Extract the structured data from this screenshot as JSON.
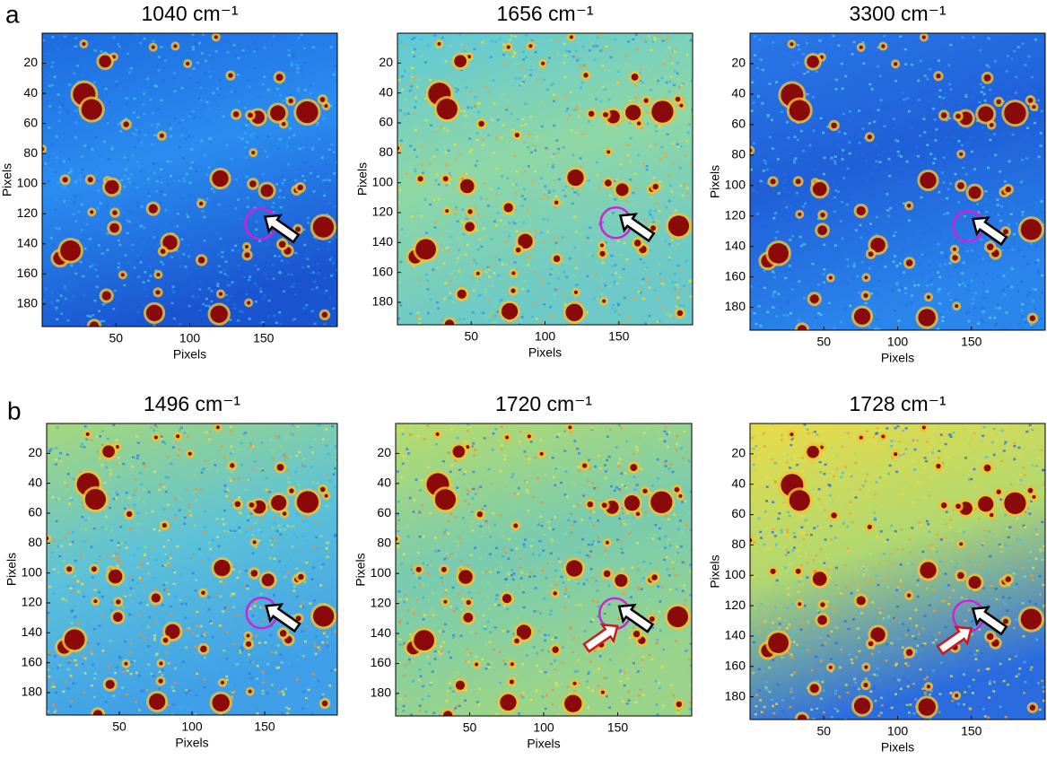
{
  "panels": [
    {
      "label": "a"
    },
    {
      "label": "b"
    }
  ],
  "chart_data": [
    {
      "type": "heatmap",
      "title": "1040 cm⁻¹",
      "xlabel": "Pixels",
      "ylabel": "Pixels",
      "xlim": [
        0,
        200
      ],
      "ylim": [
        0,
        195
      ],
      "xticks": [
        50,
        100,
        150
      ],
      "yticks": [
        20,
        40,
        60,
        80,
        100,
        120,
        140,
        160,
        180
      ],
      "y_inverted": true
    },
    {
      "type": "heatmap",
      "title": "1656 cm⁻¹",
      "xlabel": "Pixels",
      "ylabel": "Pixels",
      "xlim": [
        0,
        200
      ],
      "ylim": [
        0,
        195
      ],
      "xticks": [
        50,
        100,
        150
      ],
      "yticks": [
        20,
        40,
        60,
        80,
        100,
        120,
        140,
        160,
        180
      ],
      "y_inverted": true
    },
    {
      "type": "heatmap",
      "title": "3300 cm⁻¹",
      "xlabel": "Pixels",
      "ylabel": "Pixels",
      "xlim": [
        0,
        200
      ],
      "ylim": [
        0,
        195
      ],
      "xticks": [
        50,
        100,
        150
      ],
      "yticks": [
        20,
        40,
        60,
        80,
        100,
        120,
        140,
        160,
        180
      ],
      "y_inverted": true
    },
    {
      "type": "heatmap",
      "title": "1496 cm⁻¹",
      "xlabel": "Pixels",
      "ylabel": "Pixels",
      "xlim": [
        0,
        200
      ],
      "ylim": [
        0,
        195
      ],
      "xticks": [
        50,
        100,
        150
      ],
      "yticks": [
        20,
        40,
        60,
        80,
        100,
        120,
        140,
        160,
        180
      ],
      "y_inverted": true
    },
    {
      "type": "heatmap",
      "title": "1720 cm⁻¹",
      "xlabel": "Pixels",
      "ylabel": "Pixels",
      "xlim": [
        0,
        200
      ],
      "ylim": [
        0,
        195
      ],
      "xticks": [
        50,
        100,
        150
      ],
      "yticks": [
        20,
        40,
        60,
        80,
        100,
        120,
        140,
        160,
        180
      ],
      "y_inverted": true
    },
    {
      "type": "heatmap",
      "title": "1728 cm⁻¹",
      "xlabel": "Pixels",
      "ylabel": "Pixels",
      "xlim": [
        0,
        200
      ],
      "ylim": [
        0,
        195
      ],
      "xticks": [
        50,
        100,
        150
      ],
      "yticks": [
        20,
        40,
        60,
        80,
        100,
        120,
        140,
        160,
        180
      ],
      "y_inverted": true
    }
  ]
}
